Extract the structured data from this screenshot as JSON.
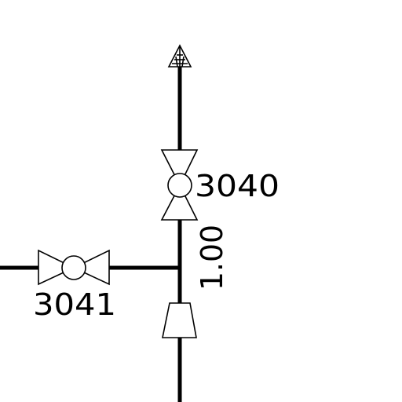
{
  "drawing": {
    "background": "#ffffff",
    "line_color": "#000000",
    "valves": [
      {
        "tag": "3040",
        "orientation": "vertical",
        "type": "ball-valve"
      },
      {
        "tag": "3041",
        "orientation": "horizontal",
        "type": "ball-valve"
      }
    ],
    "reducer": {
      "type": "concentric-reducer"
    },
    "pipe_dimension": "1.00",
    "flow_arrow": {
      "direction": "up"
    }
  }
}
